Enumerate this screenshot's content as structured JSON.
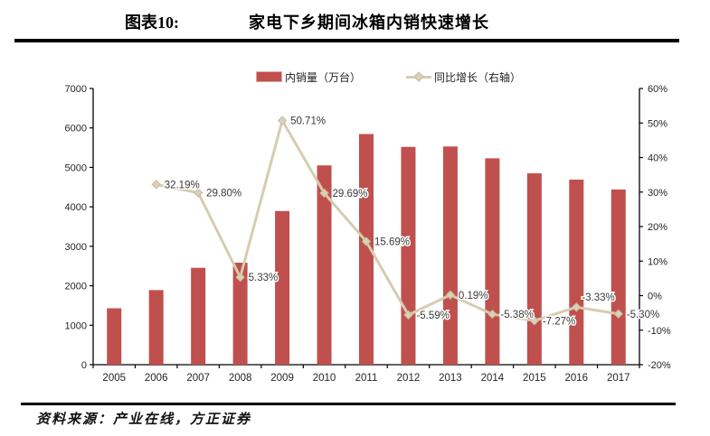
{
  "header": {
    "label": "图表10:",
    "title": "家电下乡期间冰箱内销快速增长"
  },
  "source": "资料来源：产业在线，方正证券",
  "colors": {
    "bar": "#C0504D",
    "bar_border": "#DCA9A6",
    "line": "#D5CDB0",
    "marker_fill": "#D9D2B8",
    "marker_stroke": "#C6BD9B",
    "axis": "#000000",
    "tick_label": "#262626",
    "data_label": "#3A3A3A"
  },
  "chart_data": {
    "type": "bar",
    "subtype": "bar+line combo, dual axis",
    "title": "家电下乡期间冰箱内销快速增长",
    "categories": [
      "2005",
      "2006",
      "2007",
      "2008",
      "2009",
      "2010",
      "2011",
      "2012",
      "2013",
      "2014",
      "2015",
      "2016",
      "2017"
    ],
    "series": [
      {
        "name": "内销量（万台）",
        "type": "bar",
        "axis": "left",
        "values": [
          1430,
          1890,
          2455,
          2585,
          3895,
          5050,
          5845,
          5520,
          5530,
          5230,
          4850,
          4690,
          4440
        ]
      },
      {
        "name": "同比增长（右轴）",
        "type": "line",
        "axis": "right",
        "values": [
          null,
          32.19,
          29.8,
          5.33,
          50.71,
          29.69,
          15.69,
          -5.59,
          0.19,
          -5.38,
          -7.27,
          -3.33,
          -5.3
        ],
        "labels": [
          "",
          "32.19%",
          "29.80%",
          "5.33%",
          "50.71%",
          "29.69%",
          "15.69%",
          "-5.59%",
          "0.19%",
          "-5.38%",
          "-7.27%",
          "-3.33%",
          "-5.30%"
        ]
      }
    ],
    "left_axis": {
      "min": 0,
      "max": 7000,
      "step": 1000,
      "ticks": [
        "0",
        "1000",
        "2000",
        "3000",
        "4000",
        "5000",
        "6000",
        "7000"
      ]
    },
    "right_axis": {
      "min": -20,
      "max": 60,
      "step": 10,
      "ticks": [
        "-20%",
        "-10%",
        "0%",
        "10%",
        "20%",
        "30%",
        "40%",
        "50%",
        "60%"
      ]
    },
    "grid": false,
    "legend_position": "top"
  }
}
